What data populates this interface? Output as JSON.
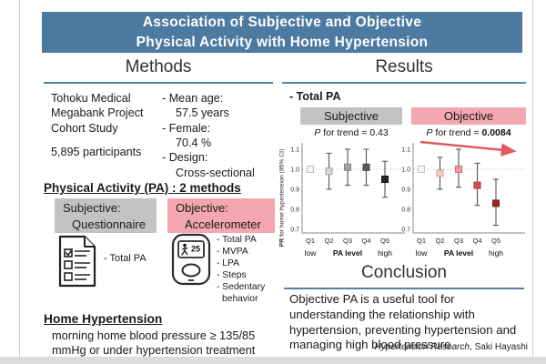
{
  "banner": {
    "title_line1": "Association of Subjective and Objective",
    "title_line2": "Physical Activity with Home Hypertension",
    "bg_color": "#4d7aa0"
  },
  "methods": {
    "heading": "Methods",
    "cohort_line1": "Tohoku Medical",
    "cohort_line2": "Megabank Project",
    "cohort_line3": "Cohort Study",
    "participants": "5,895 participants",
    "stats": [
      {
        "label": "- Mean age:",
        "value": "57.5 years"
      },
      {
        "label": "- Female:",
        "value": "70.4 %"
      },
      {
        "label": "- Design:",
        "value": "Cross-sectional"
      }
    ]
  },
  "pa_section": {
    "heading": "Physical Activity (PA) : 2 methods",
    "subjective_line1": "Subjective:",
    "subjective_line2": "Questionnaire",
    "objective_line1": "Objective:",
    "objective_line2": "Accelerometer",
    "subjective_color": "#c3c3c3",
    "objective_color": "#f3a7ae",
    "subjective_items": [
      "- Total PA"
    ],
    "objective_items": [
      "- Total PA",
      "- MVPA",
      "- LPA",
      "- Steps",
      "- Sedentary behavior"
    ],
    "icons": {
      "subjective": "questionnaire-icon",
      "objective": "accelerometer-icon",
      "accelerometer_display_value": "25"
    }
  },
  "home_hypertension": {
    "heading": "Home Hypertension",
    "definition": "morning home blood pressure ≥ 135/85 mmHg or under hypertension treatment"
  },
  "results": {
    "heading": "Results",
    "subtitle": "- Total PA",
    "ylabel_bold": "PR",
    "ylabel_rest": " for home hypertension (95% CI)"
  },
  "conclusion": {
    "heading": "Conclusion",
    "text": "Objective PA is a useful tool for understanding the relationship with hypertension, preventing hypertension and managing high blood pressure.",
    "citation_journal": "Hypertension Research",
    "citation_author": ", Saki Hayashi"
  },
  "chart_data": [
    {
      "type": "scatter",
      "group_label": "Subjective",
      "group_color": "#c3c3c3",
      "p_italic": "P",
      "p_text": " for trend = ",
      "p_value": "0.43",
      "p_value_bold": false,
      "categories": [
        "Q1",
        "Q2",
        "Q3",
        "Q4",
        "Q5"
      ],
      "x_sublabel_left": "low",
      "x_sublabel_center": "PA level",
      "x_sublabel_right": "high",
      "ylabel": "PR for home hypertension (95% CI)",
      "yticks": [
        1.1,
        1.0,
        0.9,
        0.8,
        0.7
      ],
      "ylim": [
        0.67,
        1.14
      ],
      "reference_line": 1.0,
      "series": [
        {
          "name": "PR (95% CI)",
          "values": [
            1.0,
            0.99,
            1.01,
            1.01,
            0.95
          ],
          "ci_low": [
            null,
            0.9,
            0.92,
            0.92,
            0.86
          ],
          "ci_high": [
            null,
            1.08,
            1.1,
            1.1,
            1.04
          ],
          "marker_fills": [
            "#f4f4f4",
            "#d7d7d7",
            "#a4a4a4",
            "#5a5a5a",
            "#262626"
          ],
          "marker_strokes": [
            "#bdbdbd",
            "#a0a0a0",
            "#808080",
            "#454545",
            "#141414"
          ]
        }
      ],
      "trend_arrow": false,
      "arrow_color": null
    },
    {
      "type": "scatter",
      "group_label": "Objective",
      "group_color": "#f3a7ae",
      "p_italic": "P",
      "p_text": " for trend = ",
      "p_value": "0.0084",
      "p_value_bold": true,
      "categories": [
        "Q1",
        "Q2",
        "Q3",
        "Q4",
        "Q5"
      ],
      "x_sublabel_left": "low",
      "x_sublabel_center": "PA level",
      "x_sublabel_right": "high",
      "ylabel": "PR for home hypertension (95% CI)",
      "yticks": [
        1.1,
        1.0,
        0.9,
        0.8,
        0.7
      ],
      "ylim": [
        0.67,
        1.14
      ],
      "reference_line": 1.0,
      "series": [
        {
          "name": "PR (95% CI)",
          "values": [
            1.0,
            0.98,
            1.0,
            0.92,
            0.83
          ],
          "ci_low": [
            null,
            0.9,
            0.91,
            0.82,
            0.72
          ],
          "ci_high": [
            null,
            1.06,
            1.1,
            1.03,
            0.95
          ],
          "marker_fills": [
            "#f5f5f5",
            "#f6c9cd",
            "#ee99a1",
            "#cf4e4e",
            "#a2261f"
          ],
          "marker_strokes": [
            "#c4c4c4",
            "#dba0a6",
            "#d3707a",
            "#ae3a3a",
            "#861d17"
          ]
        }
      ],
      "trend_arrow": true,
      "arrow_color": "#e05a60"
    }
  ]
}
